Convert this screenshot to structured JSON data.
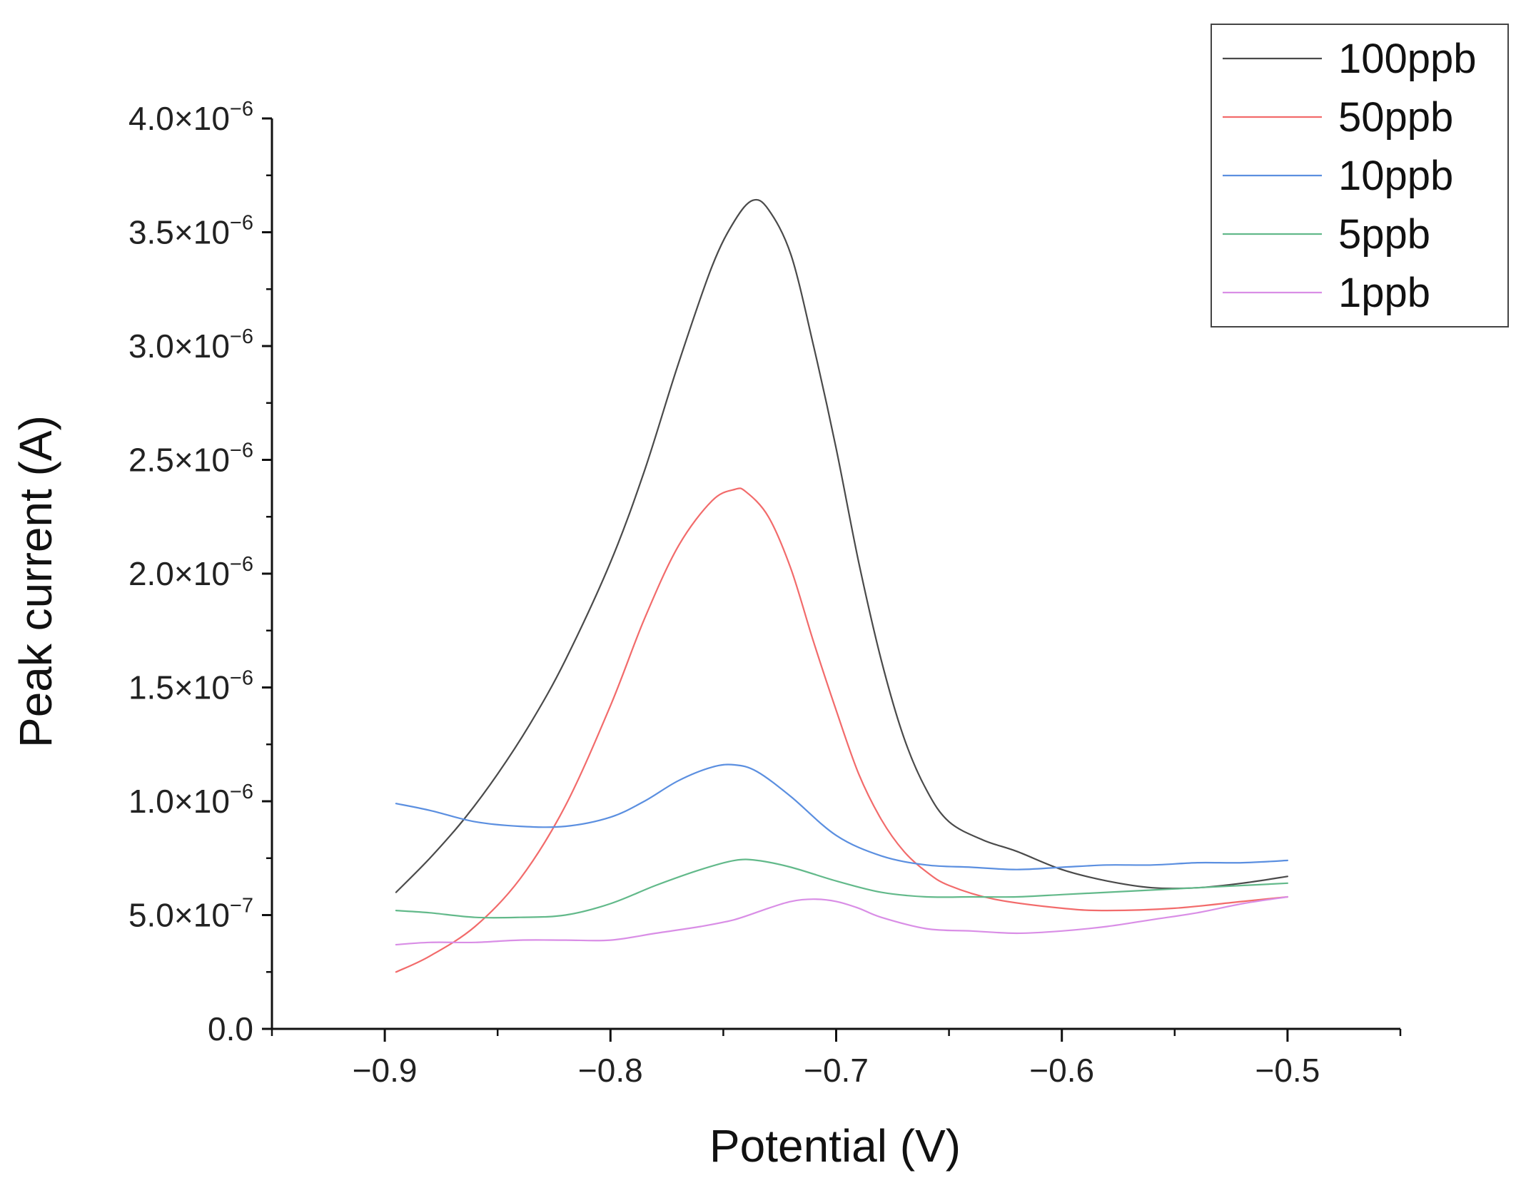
{
  "chart_data": {
    "type": "line",
    "title": "",
    "xlabel": "Potential (V)",
    "ylabel": "Peak current (A)",
    "xlim": [
      -0.95,
      -0.45
    ],
    "ylim": [
      0,
      4e-06
    ],
    "xticks": [
      -0.9,
      -0.8,
      -0.7,
      -0.6,
      -0.5
    ],
    "xtick_labels": [
      "−0.9",
      "−0.8",
      "−0.7",
      "−0.6",
      "−0.5"
    ],
    "yticks": [
      {
        "value": 0,
        "mantissa": "0.0",
        "exponent": ""
      },
      {
        "value": 5e-07,
        "mantissa": "5.0×10",
        "exponent": "−7"
      },
      {
        "value": 1e-06,
        "mantissa": "1.0×10",
        "exponent": "−6"
      },
      {
        "value": 1.5e-06,
        "mantissa": "1.5×10",
        "exponent": "−6"
      },
      {
        "value": 2e-06,
        "mantissa": "2.0×10",
        "exponent": "−6"
      },
      {
        "value": 2.5e-06,
        "mantissa": "2.5×10",
        "exponent": "−6"
      },
      {
        "value": 3e-06,
        "mantissa": "3.0×10",
        "exponent": "−6"
      },
      {
        "value": 3.5e-06,
        "mantissa": "3.5×10",
        "exponent": "−6"
      },
      {
        "value": 4e-06,
        "mantissa": "4.0×10",
        "exponent": "−6"
      }
    ],
    "grid": false,
    "legend_position": "top-right",
    "series": [
      {
        "name": "100ppb",
        "color": "#4a4a4a",
        "x": [
          -0.895,
          -0.88,
          -0.865,
          -0.85,
          -0.835,
          -0.82,
          -0.8,
          -0.785,
          -0.77,
          -0.755,
          -0.745,
          -0.737,
          -0.73,
          -0.72,
          -0.71,
          -0.7,
          -0.69,
          -0.68,
          -0.67,
          -0.66,
          -0.65,
          -0.635,
          -0.62,
          -0.6,
          -0.58,
          -0.56,
          -0.54,
          -0.52,
          -0.5
        ],
        "y": [
          6e-07,
          7.5e-07,
          9.2e-07,
          1.12e-06,
          1.35e-06,
          1.62e-06,
          2.05e-06,
          2.45e-06,
          2.92e-06,
          3.35e-06,
          3.55e-06,
          3.64e-06,
          3.6e-06,
          3.4e-06,
          3e-06,
          2.55e-06,
          2.05e-06,
          1.62e-06,
          1.28e-06,
          1.05e-06,
          9.1e-07,
          8.3e-07,
          7.8e-07,
          7e-07,
          6.5e-07,
          6.2e-07,
          6.2e-07,
          6.4e-07,
          6.7e-07
        ]
      },
      {
        "name": "50ppb",
        "color": "#f26b6b",
        "x": [
          -0.895,
          -0.88,
          -0.86,
          -0.84,
          -0.82,
          -0.8,
          -0.785,
          -0.77,
          -0.755,
          -0.745,
          -0.74,
          -0.73,
          -0.72,
          -0.71,
          -0.7,
          -0.69,
          -0.68,
          -0.67,
          -0.66,
          -0.65,
          -0.63,
          -0.6,
          -0.58,
          -0.55,
          -0.52,
          -0.5
        ],
        "y": [
          2.5e-07,
          3.2e-07,
          4.5e-07,
          6.6e-07,
          9.8e-07,
          1.42e-06,
          1.8e-06,
          2.12e-06,
          2.32e-06,
          2.37e-06,
          2.36e-06,
          2.25e-06,
          2.02e-06,
          1.7e-06,
          1.4e-06,
          1.12e-06,
          9.2e-07,
          7.8e-07,
          6.9e-07,
          6.3e-07,
          5.7e-07,
          5.3e-07,
          5.2e-07,
          5.3e-07,
          5.6e-07,
          5.8e-07
        ]
      },
      {
        "name": "10ppb",
        "color": "#5b8fe0",
        "x": [
          -0.895,
          -0.88,
          -0.86,
          -0.84,
          -0.82,
          -0.8,
          -0.785,
          -0.77,
          -0.755,
          -0.745,
          -0.735,
          -0.72,
          -0.7,
          -0.68,
          -0.66,
          -0.64,
          -0.62,
          -0.6,
          -0.58,
          -0.56,
          -0.54,
          -0.52,
          -0.5
        ],
        "y": [
          9.9e-07,
          9.6e-07,
          9.1e-07,
          8.9e-07,
          8.9e-07,
          9.3e-07,
          1e-06,
          1.09e-06,
          1.15e-06,
          1.16e-06,
          1.13e-06,
          1.02e-06,
          8.5e-07,
          7.6e-07,
          7.2e-07,
          7.1e-07,
          7e-07,
          7.1e-07,
          7.2e-07,
          7.2e-07,
          7.3e-07,
          7.3e-07,
          7.4e-07
        ]
      },
      {
        "name": "5ppb",
        "color": "#62b98a",
        "x": [
          -0.895,
          -0.88,
          -0.86,
          -0.84,
          -0.82,
          -0.8,
          -0.78,
          -0.76,
          -0.745,
          -0.735,
          -0.72,
          -0.7,
          -0.68,
          -0.66,
          -0.64,
          -0.62,
          -0.6,
          -0.58,
          -0.56,
          -0.54,
          -0.52,
          -0.5
        ],
        "y": [
          5.2e-07,
          5.1e-07,
          4.9e-07,
          4.9e-07,
          5e-07,
          5.5e-07,
          6.3e-07,
          7e-07,
          7.4e-07,
          7.4e-07,
          7.1e-07,
          6.5e-07,
          6e-07,
          5.8e-07,
          5.8e-07,
          5.8e-07,
          5.9e-07,
          6e-07,
          6.1e-07,
          6.2e-07,
          6.3e-07,
          6.4e-07
        ]
      },
      {
        "name": "1ppb",
        "color": "#d98ee6",
        "x": [
          -0.895,
          -0.88,
          -0.86,
          -0.84,
          -0.82,
          -0.8,
          -0.78,
          -0.76,
          -0.745,
          -0.73,
          -0.72,
          -0.71,
          -0.7,
          -0.69,
          -0.68,
          -0.66,
          -0.64,
          -0.62,
          -0.6,
          -0.58,
          -0.56,
          -0.54,
          -0.52,
          -0.5
        ],
        "y": [
          3.7e-07,
          3.8e-07,
          3.8e-07,
          3.9e-07,
          3.9e-07,
          3.9e-07,
          4.2e-07,
          4.5e-07,
          4.8e-07,
          5.3e-07,
          5.6e-07,
          5.7e-07,
          5.6e-07,
          5.3e-07,
          4.9e-07,
          4.4e-07,
          4.3e-07,
          4.2e-07,
          4.3e-07,
          4.5e-07,
          4.8e-07,
          5.1e-07,
          5.5e-07,
          5.8e-07
        ]
      }
    ]
  }
}
